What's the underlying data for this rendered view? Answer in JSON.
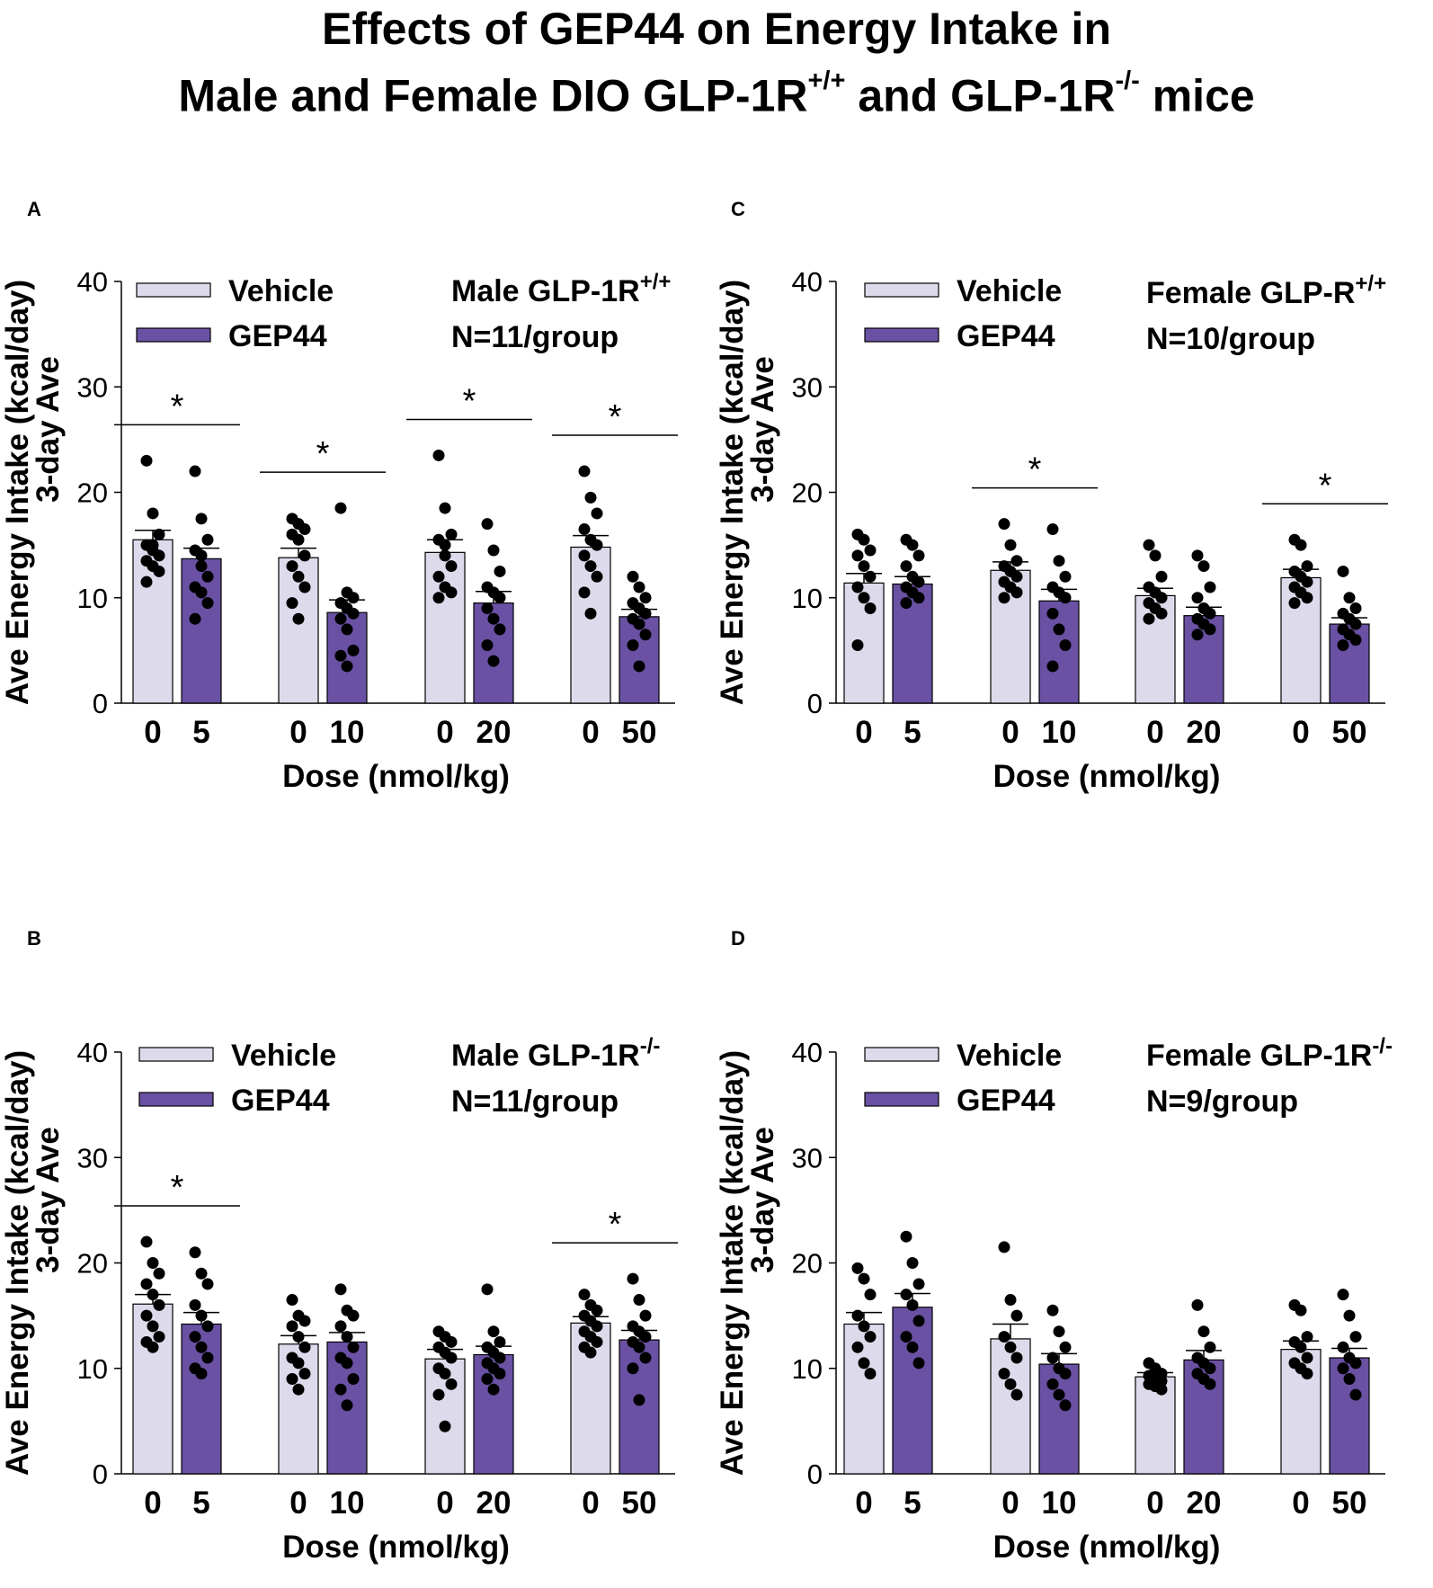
{
  "figure_title": {
    "line1": "Effects of GEP44 on Energy Intake in",
    "line2_a": "Male and Female DIO GLP-1R",
    "line2_sup1": "+/+",
    "line2_b": " and GLP-1R",
    "line2_sup2": "-/-",
    "line2_c": " mice"
  },
  "colors": {
    "vehicle": "#dddbeb",
    "gep44": "#6a51a3",
    "dots": "#000000"
  },
  "chart_data": [
    {
      "panel": "A",
      "type": "bar",
      "title": "Male GLP-1R",
      "title_sup": "+/+",
      "n_label": "N=11/group",
      "ylabel_line1": "Ave Energy  Intake (kcal/day)",
      "ylabel_line2": "3-day Ave",
      "xlabel": "Dose (nmol/kg)",
      "ylim": [
        0,
        40
      ],
      "yticks": [
        "0",
        "10",
        "20",
        "30",
        "40"
      ],
      "legend": [
        "Vehicle",
        "GEP44"
      ],
      "groups": [
        {
          "labels": [
            "0",
            "5"
          ],
          "values": [
            15.5,
            13.7
          ],
          "errors": [
            0.9,
            1.0
          ],
          "points": [
            [
              23,
              18,
              16,
              15,
              14.5,
              14,
              13.5,
              13,
              12.5,
              11.5,
              15
            ],
            [
              22,
              17.5,
              15.5,
              14.5,
              13,
              12,
              11,
              10.5,
              9.5,
              8,
              14
            ]
          ],
          "significant": true,
          "star": "*"
        },
        {
          "labels": [
            "0",
            "10"
          ],
          "values": [
            13.8,
            8.6
          ],
          "errors": [
            0.9,
            1.2
          ],
          "points": [
            [
              17.5,
              17,
              16.5,
              16,
              15.5,
              14,
              13,
              12,
              11,
              9.5,
              8
            ],
            [
              18.5,
              10.5,
              10,
              9.5,
              9,
              8.5,
              8,
              7,
              5,
              4.5,
              3.5
            ]
          ],
          "significant": true,
          "star": "*"
        },
        {
          "labels": [
            "0",
            "20"
          ],
          "values": [
            14.3,
            9.5
          ],
          "errors": [
            1.2,
            1.1
          ],
          "points": [
            [
              23.5,
              18.5,
              16,
              15.5,
              14,
              13,
              12,
              11,
              10.5,
              10,
              15
            ],
            [
              17,
              14.5,
              12.5,
              11,
              10.5,
              10,
              9,
              8,
              7,
              5.5,
              4
            ]
          ],
          "significant": true,
          "star": "*"
        },
        {
          "labels": [
            "0",
            "50"
          ],
          "values": [
            14.8,
            8.2
          ],
          "errors": [
            1.1,
            0.7
          ],
          "points": [
            [
              22,
              19.5,
              18,
              16.5,
              15.5,
              15,
              14,
              13,
              12,
              10.5,
              8.5
            ],
            [
              12,
              11,
              10,
              9.5,
              9,
              8.5,
              8,
              7.5,
              6.5,
              5.5,
              3.5
            ]
          ],
          "significant": true,
          "star": "*"
        }
      ]
    },
    {
      "panel": "C",
      "type": "bar",
      "title": "Female GLP-R",
      "title_sup": "+/+",
      "n_label": "N=10/group",
      "ylabel_line1": "Ave Energy  Intake (kcal/day)",
      "ylabel_line2": "3-day Ave",
      "xlabel": "Dose (nmol/kg)",
      "ylim": [
        0,
        40
      ],
      "yticks": [
        "0",
        "10",
        "20",
        "30",
        "40"
      ],
      "legend": [
        "Vehicle",
        "GEP44"
      ],
      "groups": [
        {
          "labels": [
            "0",
            "5"
          ],
          "values": [
            11.4,
            11.3
          ],
          "errors": [
            0.9,
            0.7
          ],
          "points": [
            [
              16,
              15.5,
              14.5,
              14,
              13,
              12,
              11,
              10,
              9,
              5.5
            ],
            [
              15.5,
              15,
              14,
              13,
              12,
              11.5,
              11,
              10.5,
              10,
              9.5
            ]
          ],
          "significant": false,
          "star": "*"
        },
        {
          "labels": [
            "0",
            "10"
          ],
          "values": [
            12.6,
            9.7
          ],
          "errors": [
            0.8,
            1.1
          ],
          "points": [
            [
              17,
              15,
              13.5,
              13,
              12.5,
              12,
              11.5,
              11,
              10.5,
              10
            ],
            [
              16.5,
              13.5,
              12,
              11,
              10.5,
              10,
              8.5,
              7,
              5.5,
              3.5
            ]
          ],
          "significant": true,
          "star": "*"
        },
        {
          "labels": [
            "0",
            "20"
          ],
          "values": [
            10.2,
            8.3
          ],
          "errors": [
            0.7,
            0.8
          ],
          "points": [
            [
              15,
              14,
              12,
              11,
              10.5,
              10,
              9.5,
              9,
              8.5,
              8
            ],
            [
              14,
              13,
              11,
              10,
              9,
              8.5,
              8,
              7.5,
              7,
              6.5
            ]
          ],
          "significant": false,
          "star": "*"
        },
        {
          "labels": [
            "0",
            "50"
          ],
          "values": [
            11.9,
            7.5
          ],
          "errors": [
            0.8,
            0.6
          ],
          "points": [
            [
              15.5,
              15,
              13,
              12.5,
              12,
              11.5,
              11,
              10.5,
              10,
              9.5
            ],
            [
              12.5,
              10,
              9,
              8.5,
              8,
              7.5,
              7,
              6.5,
              6,
              5.5
            ]
          ],
          "significant": true,
          "star": "*"
        }
      ]
    },
    {
      "panel": "B",
      "type": "bar",
      "title": "Male GLP-1R",
      "title_sup": "-/-",
      "n_label": "N=11/group",
      "ylabel_line1": "Ave Energy  Intake (kcal/day)",
      "ylabel_line2": "3-day Ave",
      "xlabel": "Dose (nmol/kg)",
      "ylim": [
        0,
        40
      ],
      "yticks": [
        "0",
        "10",
        "20",
        "30",
        "40"
      ],
      "legend": [
        "Vehicle",
        "GEP44"
      ],
      "groups": [
        {
          "labels": [
            "0",
            "5"
          ],
          "values": [
            16.1,
            14.2
          ],
          "errors": [
            0.9,
            1.1
          ],
          "points": [
            [
              22,
              20,
              19,
              18,
              17,
              16,
              15,
              14,
              13,
              12.5,
              12
            ],
            [
              21,
              19,
              18,
              16,
              15,
              14,
              13,
              12,
              11,
              10,
              9.5
            ]
          ],
          "significant": true,
          "star": "*"
        },
        {
          "labels": [
            "0",
            "10"
          ],
          "values": [
            12.3,
            12.5
          ],
          "errors": [
            0.8,
            0.9
          ],
          "points": [
            [
              16.5,
              15,
              14.5,
              14,
              13,
              12,
              11,
              10.5,
              9.5,
              9,
              8
            ],
            [
              17.5,
              15.5,
              15,
              14,
              13,
              12,
              11,
              10.5,
              9,
              8,
              6.5
            ]
          ],
          "significant": false,
          "star": "*"
        },
        {
          "labels": [
            "0",
            "20"
          ],
          "values": [
            10.9,
            11.3
          ],
          "errors": [
            0.9,
            0.8
          ],
          "points": [
            [
              13.5,
              13,
              12.5,
              12,
              11.5,
              11,
              10,
              9.5,
              8.5,
              7.5,
              4.5
            ],
            [
              17.5,
              13.5,
              12.5,
              12,
              11.5,
              11,
              10.5,
              10,
              9.5,
              9,
              8
            ]
          ],
          "significant": false,
          "star": "*"
        },
        {
          "labels": [
            "0",
            "50"
          ],
          "values": [
            14.3,
            12.7
          ],
          "errors": [
            0.6,
            0.9
          ],
          "points": [
            [
              17,
              16,
              15.5,
              15,
              14.5,
              14,
              13.5,
              13,
              12.5,
              12,
              11.5
            ],
            [
              18.5,
              16.5,
              15,
              14,
              13.5,
              13,
              12.5,
              12,
              11,
              10,
              7
            ]
          ],
          "significant": true,
          "star": "*"
        }
      ]
    },
    {
      "panel": "D",
      "type": "bar",
      "title": "Female GLP-1R",
      "title_sup": "-/-",
      "n_label": "N=9/group",
      "ylabel_line1": "Ave Energy  Intake (kcal/day)",
      "ylabel_line2": "3-day Ave",
      "xlabel": "Dose (nmol/kg)",
      "ylim": [
        0,
        40
      ],
      "yticks": [
        "0",
        "10",
        "20",
        "30",
        "40"
      ],
      "legend": [
        "Vehicle",
        "GEP44"
      ],
      "groups": [
        {
          "labels": [
            "0",
            "5"
          ],
          "values": [
            14.2,
            15.8
          ],
          "errors": [
            1.1,
            1.3
          ],
          "points": [
            [
              19.5,
              18.5,
              17,
              15,
              14,
              13,
              12,
              10.5,
              9.5
            ],
            [
              22.5,
              20,
              18,
              17,
              16,
              14.5,
              13,
              12,
              10.5
            ]
          ],
          "significant": false,
          "star": "*"
        },
        {
          "labels": [
            "0",
            "10"
          ],
          "values": [
            12.8,
            10.4
          ],
          "errors": [
            1.4,
            1.0
          ],
          "points": [
            [
              21.5,
              16.5,
              15,
              13,
              12,
              11,
              9.5,
              8.5,
              7.5
            ],
            [
              15.5,
              13.5,
              12,
              11,
              10,
              9.5,
              8.5,
              7.5,
              6.5
            ]
          ],
          "significant": false,
          "star": "*"
        },
        {
          "labels": [
            "0",
            "20"
          ],
          "values": [
            9.2,
            10.8
          ],
          "errors": [
            0.4,
            0.9
          ],
          "points": [
            [
              10.5,
              10,
              9.5,
              9.3,
              9,
              8.8,
              8.5,
              8.3,
              8
            ],
            [
              16,
              13.5,
              12,
              11,
              10.5,
              10,
              9.5,
              9,
              8.5
            ]
          ],
          "significant": false,
          "star": "*"
        },
        {
          "labels": [
            "0",
            "50"
          ],
          "values": [
            11.8,
            11
          ],
          "errors": [
            0.8,
            0.9
          ],
          "points": [
            [
              16,
              15.5,
              13,
              12.5,
              12,
              11,
              10.5,
              10,
              9.5
            ],
            [
              17,
              15,
              13,
              12,
              11,
              10.5,
              10,
              9,
              7.5
            ]
          ],
          "significant": false,
          "star": "*"
        }
      ]
    }
  ]
}
